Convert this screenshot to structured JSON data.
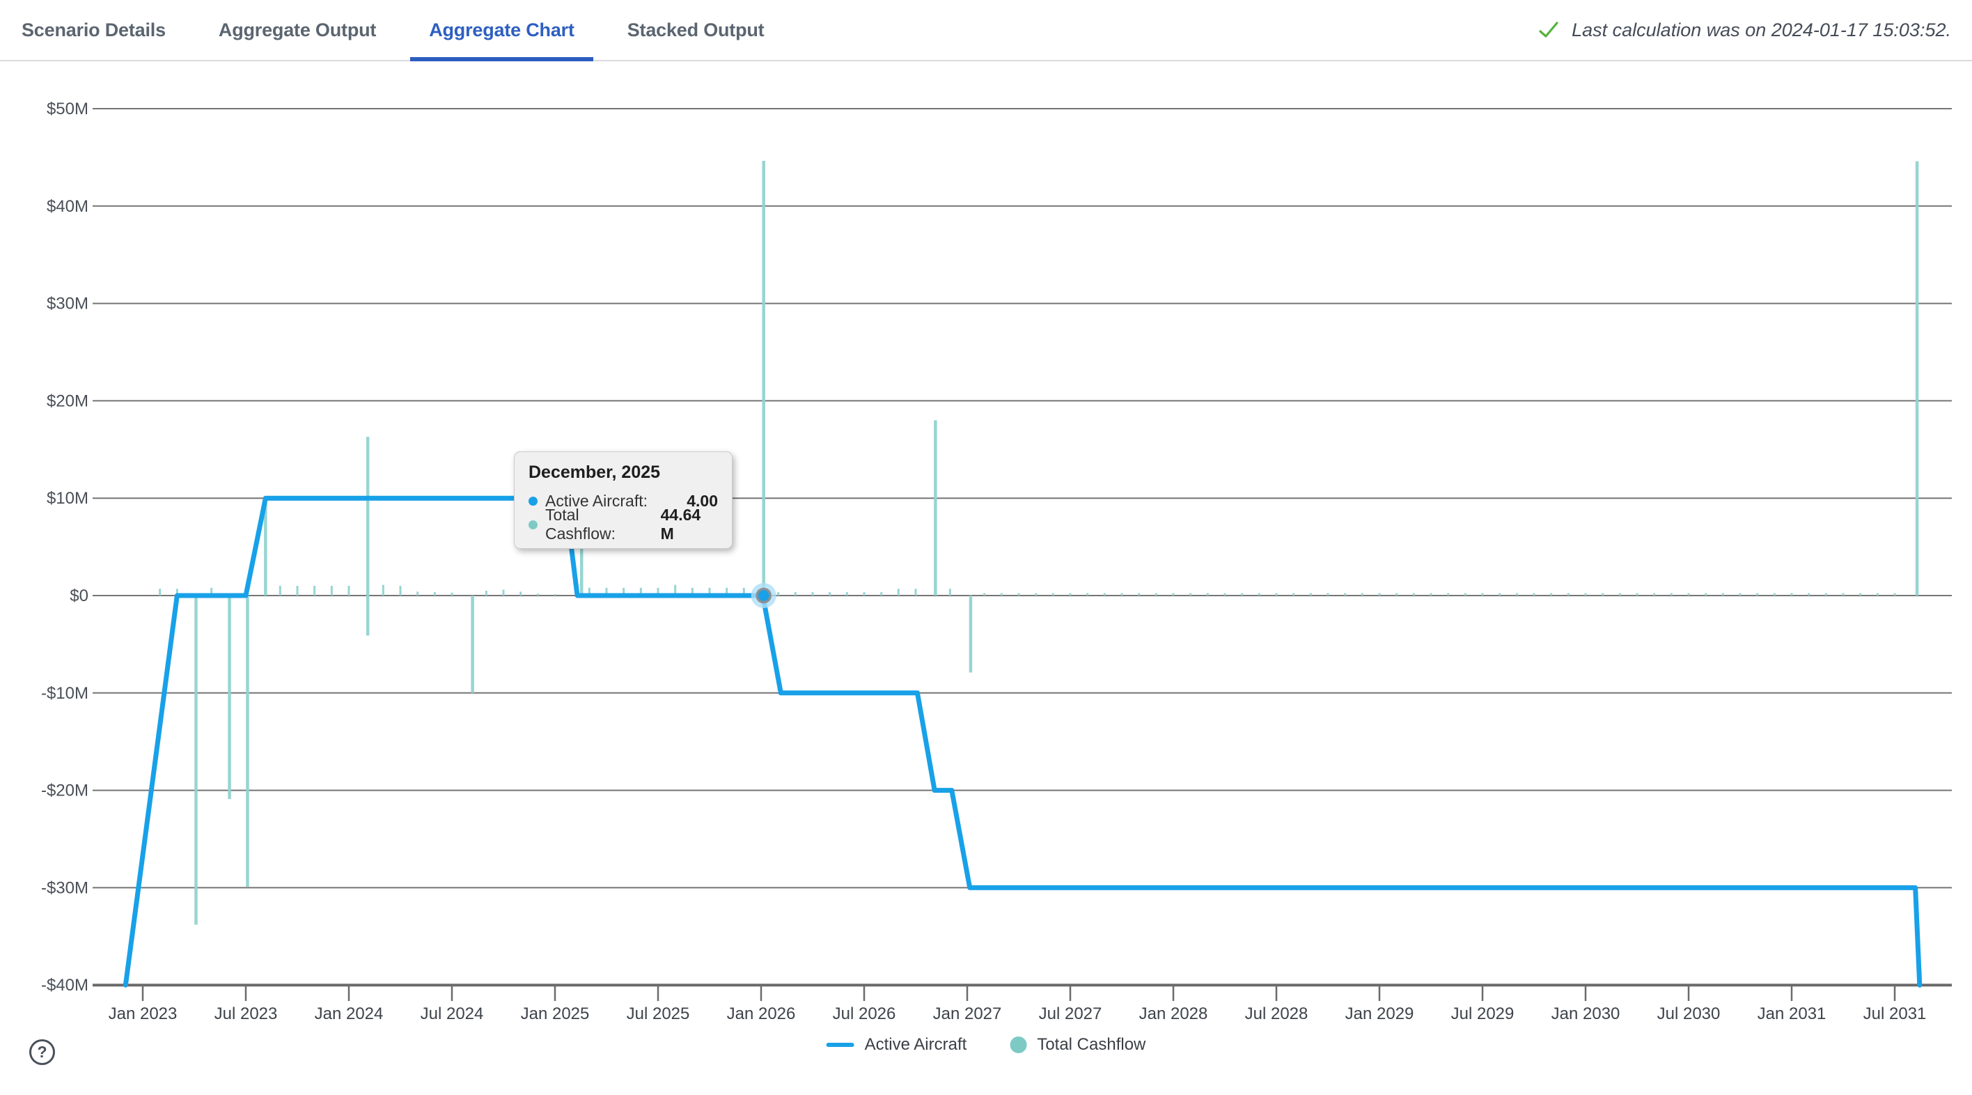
{
  "tabs": {
    "items": [
      {
        "label": "Scenario Details",
        "active": false
      },
      {
        "label": "Aggregate Output",
        "active": false
      },
      {
        "label": "Aggregate Chart",
        "active": true
      },
      {
        "label": "Stacked Output",
        "active": false
      }
    ]
  },
  "status": {
    "icon": "check",
    "message": "Last calculation was on 2024-01-17 15:03:52.",
    "check_color": "#55B23C"
  },
  "tooltip": {
    "title": "December, 2025",
    "rows": [
      {
        "label": "Active Aircraft:",
        "value": "4.00",
        "color": "#18A1E8"
      },
      {
        "label": "Total Cashflow:",
        "value": "44.64 M",
        "color": "#7DCAC5"
      }
    ]
  },
  "legend": {
    "items": [
      {
        "label": "Active Aircraft",
        "swatch": "line",
        "color": "#18A1E8"
      },
      {
        "label": "Total Cashflow",
        "swatch": "dot",
        "color": "#7DCAC5"
      }
    ]
  },
  "help": {
    "label": "?"
  },
  "chart_data": {
    "type": "combo",
    "title": "",
    "y_axis": {
      "unit": "USD millions",
      "labels": [
        "$50M",
        "$40M",
        "$30M",
        "$20M",
        "$10M",
        "$0",
        "-$10M",
        "-$20M",
        "-$30M",
        "-$40M"
      ],
      "values": [
        50,
        40,
        30,
        20,
        10,
        0,
        -10,
        -20,
        -30,
        -40
      ],
      "ylim": [
        -40,
        50
      ],
      "grid": true
    },
    "x_axis": {
      "tick_interval_months": 6,
      "labels": [
        "Jan 2023",
        "Jul 2023",
        "Jan 2024",
        "Jul 2024",
        "Jan 2025",
        "Jul 2025",
        "Jan 2026",
        "Jul 2026",
        "Jan 2027",
        "Jul 2027",
        "Jan 2028",
        "Jul 2028",
        "Jan 2029",
        "Jul 2029",
        "Jan 2030",
        "Jul 2030",
        "Jan 2031",
        "Jul 2031"
      ]
    },
    "series": [
      {
        "name": "Active Aircraft",
        "type": "line",
        "color": "#18A1E8",
        "axis": "hidden aircraft count, 0 aircraft = -$40M, 1 aircraft = +$10M per unit",
        "points_m_aircraft": [
          [
            -1,
            0
          ],
          [
            2,
            4
          ],
          [
            6,
            4
          ],
          [
            7.15,
            5
          ],
          [
            24.6,
            5
          ],
          [
            25.3,
            4
          ],
          [
            36.1,
            4
          ],
          [
            37.15,
            3
          ],
          [
            45.1,
            3
          ],
          [
            46.1,
            2
          ],
          [
            47.1,
            2
          ],
          [
            48.15,
            1
          ],
          [
            103.2,
            1
          ],
          [
            103.45,
            0
          ]
        ]
      },
      {
        "name": "Total Cashflow",
        "type": "bar",
        "unit": "M USD",
        "color": "#92D3CF",
        "points_m_value": [
          [
            1,
            0.7
          ],
          [
            2,
            0.7
          ],
          [
            3.1,
            -33.8
          ],
          [
            4,
            0.8
          ],
          [
            5.05,
            -20.9
          ],
          [
            6.1,
            -29.9
          ],
          [
            7.15,
            10.2
          ],
          [
            8,
            1.0
          ],
          [
            9,
            1.0
          ],
          [
            10,
            1.0
          ],
          [
            11,
            1.0
          ],
          [
            12,
            1.0
          ],
          [
            13.1,
            16.3
          ],
          [
            13.1,
            -4.1
          ],
          [
            14,
            1.1
          ],
          [
            15,
            1.0
          ],
          [
            16,
            0.4
          ],
          [
            17,
            0.35
          ],
          [
            18,
            0.3
          ],
          [
            19.2,
            -10.0
          ],
          [
            20,
            0.5
          ],
          [
            21,
            0.6
          ],
          [
            22,
            0.4
          ],
          [
            23,
            0.2
          ],
          [
            24,
            0.15
          ],
          [
            25.55,
            8.0
          ],
          [
            26,
            0.8
          ],
          [
            27,
            0.8
          ],
          [
            28,
            0.8
          ],
          [
            29,
            0.8
          ],
          [
            30,
            0.8
          ],
          [
            31,
            1.1
          ],
          [
            32,
            0.8
          ],
          [
            33,
            0.8
          ],
          [
            34,
            0.8
          ],
          [
            35,
            0.8
          ],
          [
            36.15,
            44.64
          ],
          [
            37,
            0.35
          ],
          [
            38,
            0.35
          ],
          [
            39,
            0.35
          ],
          [
            40,
            0.35
          ],
          [
            41,
            0.35
          ],
          [
            42,
            0.35
          ],
          [
            43,
            0.35
          ],
          [
            44,
            0.7
          ],
          [
            45,
            0.7
          ],
          [
            46.15,
            18.0
          ],
          [
            47,
            0.7
          ],
          [
            48.2,
            -7.9
          ],
          [
            103.3,
            44.6
          ]
        ],
        "minor_fill": {
          "from": 49,
          "to": 102,
          "step": 1,
          "value": 0.25
        }
      }
    ],
    "hover_point": {
      "series": "Active Aircraft",
      "month": "December, 2025",
      "m": 36.15,
      "aircraft": 4.0,
      "total_cashflow_m": 44.64
    }
  }
}
